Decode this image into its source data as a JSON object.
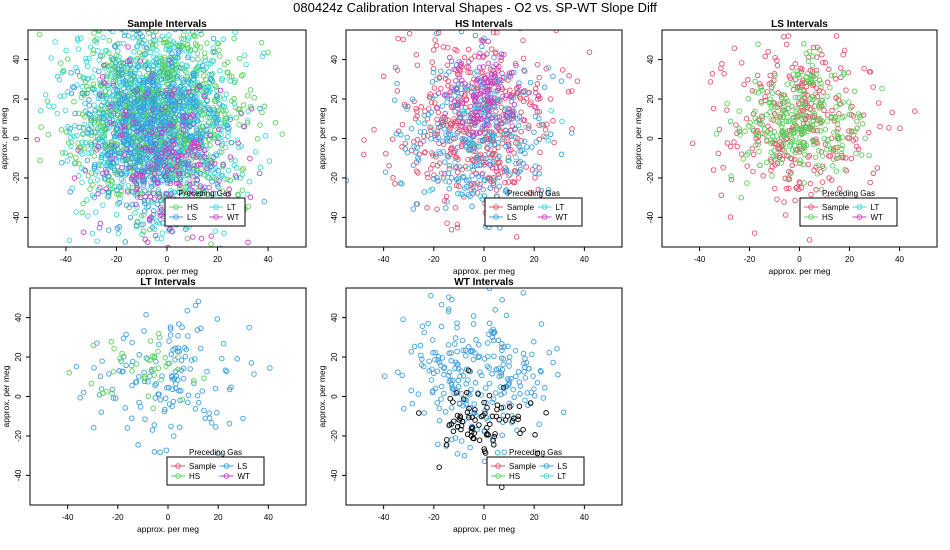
{
  "figure_title": "080424z   Calibration Interval Shapes - O2 vs. SP-WT Slope Diff",
  "colors": {
    "Sample": "#e8506e",
    "HS": "#5cd15c",
    "LS": "#3a9fe0",
    "LT": "#3fd6d6",
    "WT": "#c83fc8",
    "black": "#000000"
  },
  "chart_data": [
    {
      "type": "scatter",
      "title": "Sample Intervals",
      "xlabel": "approx. per meg",
      "ylabel": "approx. per meg",
      "xlim": [
        -55,
        55
      ],
      "ylim": [
        -55,
        55
      ],
      "xticks": [
        -40,
        -20,
        0,
        20,
        40
      ],
      "yticks": [
        -40,
        -20,
        0,
        20,
        40
      ],
      "legend": {
        "title": "Preceding Gas",
        "placement": "bottom-center",
        "entries": [
          "HS",
          "LT",
          "LS",
          "WT"
        ]
      },
      "series": [
        {
          "name": "LT",
          "color_key": "LT",
          "n": 1300,
          "mean": [
            -5,
            10
          ],
          "sd": [
            16,
            24
          ]
        },
        {
          "name": "HS",
          "color_key": "HS",
          "n": 700,
          "mean": [
            -4,
            12
          ],
          "sd": [
            18,
            25
          ]
        },
        {
          "name": "LS",
          "color_key": "LS",
          "n": 650,
          "mean": [
            -5,
            5
          ],
          "sd": [
            13,
            22
          ]
        },
        {
          "name": "WT",
          "color_key": "WT",
          "n": 220,
          "mean": [
            0,
            -10
          ],
          "sd": [
            15,
            22
          ]
        }
      ]
    },
    {
      "type": "scatter",
      "title": "HS Intervals",
      "xlabel": "approx. per meg",
      "ylabel": "approx. per meg",
      "xlim": [
        -55,
        55
      ],
      "ylim": [
        -55,
        55
      ],
      "xticks": [
        -40,
        -20,
        0,
        20,
        40
      ],
      "yticks": [
        -40,
        -20,
        0,
        20,
        40
      ],
      "legend": {
        "title": "Preceding Gas",
        "placement": "bottom-center",
        "entries": [
          "Sample",
          "LT",
          "LS",
          "WT"
        ]
      },
      "series": [
        {
          "name": "Sample",
          "color_key": "Sample",
          "n": 480,
          "mean": [
            -2,
            8
          ],
          "sd": [
            15,
            22
          ]
        },
        {
          "name": "LS",
          "color_key": "LS",
          "n": 300,
          "mean": [
            -2,
            2
          ],
          "sd": [
            14,
            22
          ]
        },
        {
          "name": "WT",
          "color_key": "WT",
          "n": 130,
          "mean": [
            2,
            22
          ],
          "sd": [
            9,
            12
          ]
        },
        {
          "name": "LT",
          "color_key": "LT",
          "n": 50,
          "mean": [
            0,
            5
          ],
          "sd": [
            15,
            20
          ]
        }
      ]
    },
    {
      "type": "scatter",
      "title": "LS Intervals",
      "xlabel": "approx. per meg",
      "ylabel": "approx. per meg",
      "xlim": [
        -55,
        55
      ],
      "ylim": [
        -55,
        55
      ],
      "xticks": [
        -40,
        -20,
        0,
        20,
        40
      ],
      "yticks": [
        -40,
        -20,
        0,
        20,
        40
      ],
      "legend": {
        "title": "Preceding Gas",
        "placement": "bottom-right",
        "entries": [
          "Sample",
          "LT",
          "HS",
          "WT"
        ]
      },
      "series": [
        {
          "name": "Sample",
          "color_key": "Sample",
          "n": 320,
          "mean": [
            0,
            5
          ],
          "sd": [
            15,
            20
          ]
        },
        {
          "name": "HS",
          "color_key": "HS",
          "n": 300,
          "mean": [
            0,
            8
          ],
          "sd": [
            12,
            14
          ]
        }
      ]
    },
    {
      "type": "scatter",
      "title": "LT Intervals",
      "xlabel": "approx. per meg",
      "ylabel": "approx. per meg",
      "xlim": [
        -55,
        55
      ],
      "ylim": [
        -55,
        55
      ],
      "xticks": [
        -40,
        -20,
        0,
        20,
        40
      ],
      "yticks": [
        -40,
        -20,
        0,
        20,
        40
      ],
      "legend": {
        "title": "Preceding Gas",
        "placement": "bottom-right",
        "entries": [
          "Sample",
          "LS",
          "HS",
          "WT"
        ]
      },
      "series": [
        {
          "name": "LS",
          "color_key": "LS",
          "n": 150,
          "mean": [
            0,
            10
          ],
          "sd": [
            15,
            17
          ]
        },
        {
          "name": "HS",
          "color_key": "HS",
          "n": 40,
          "mean": [
            -10,
            15
          ],
          "sd": [
            10,
            10
          ]
        }
      ]
    },
    {
      "type": "scatter",
      "title": "WT Intervals",
      "xlabel": "approx. per meg",
      "ylabel": "approx. per meg",
      "xlim": [
        -55,
        55
      ],
      "ylim": [
        -55,
        55
      ],
      "xticks": [
        -40,
        -20,
        0,
        20,
        40
      ],
      "yticks": [
        -40,
        -20,
        0,
        20,
        40
      ],
      "legend": {
        "title": "Preceding Gas",
        "placement": "bottom-right",
        "entries": [
          "Sample",
          "LS",
          "HS",
          "LT"
        ]
      },
      "series": [
        {
          "name": "LS",
          "color_key": "LS",
          "n": 260,
          "mean": [
            -2,
            12
          ],
          "sd": [
            14,
            18
          ]
        },
        {
          "name": "",
          "color_key": "black",
          "n": 80,
          "mean": [
            0,
            -12
          ],
          "sd": [
            10,
            9
          ]
        }
      ]
    }
  ]
}
